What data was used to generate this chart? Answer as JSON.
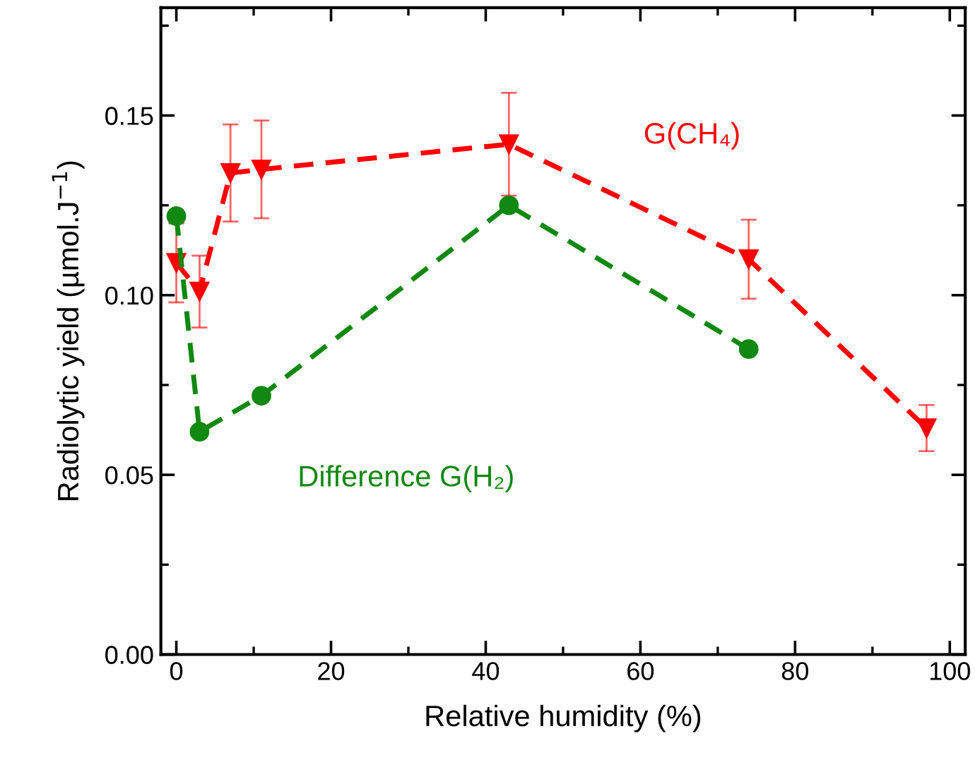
{
  "chart_data": {
    "type": "line",
    "xlabel": "Relative humidity (%)",
    "ylabel": "Radiolytic yield (µmol.J$^{−1}$)",
    "xlim": [
      -2,
      102
    ],
    "xticks": [
      0,
      {
        "value": 10,
        "label": null
      },
      20,
      {
        "value": 30,
        "label": null
      },
      40,
      {
        "value": 50,
        "label": null
      },
      60,
      {
        "value": 70,
        "label": null
      },
      80,
      {
        "value": 90,
        "label": null
      },
      100
    ],
    "ylim": [
      0,
      0.18
    ],
    "yticks": [
      {
        "value": 0,
        "label": "0.00"
      },
      {
        "value": 0.025,
        "label": null
      },
      {
        "value": 0.05,
        "label": "0.05"
      },
      {
        "value": 0.075,
        "label": null
      },
      {
        "value": 0.1,
        "label": "0.10"
      },
      {
        "value": 0.125,
        "label": null
      },
      {
        "value": 0.15,
        "label": "0.15"
      },
      {
        "value": 0.175,
        "label": null
      }
    ],
    "grid": false,
    "legend": false,
    "line_style": "dashed",
    "series": [
      {
        "name": "G(CH₄)",
        "color": "#ff0000",
        "marker": "triangle",
        "x": [
          0,
          3,
          7,
          11,
          43,
          74,
          97
        ],
        "values": [
          0.109,
          0.101,
          0.134,
          0.135,
          0.142,
          0.11,
          0.063
        ],
        "errors": [
          0.011,
          0.01,
          0.0135,
          0.0136,
          0.0143,
          0.011,
          0.0064
        ]
      },
      {
        "name": "Difference G(H₂)",
        "color": "#118811",
        "marker": "circle",
        "x": [
          0,
          3,
          11,
          43,
          74
        ],
        "values": [
          0.122,
          0.062,
          0.072,
          0.125,
          0.085
        ]
      }
    ]
  }
}
